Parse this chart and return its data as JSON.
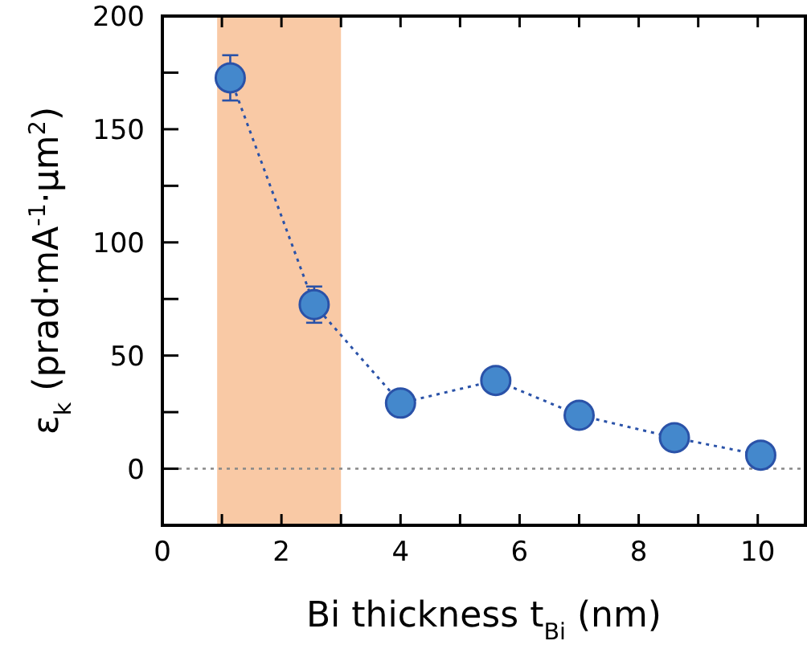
{
  "chart_data": {
    "type": "line",
    "xlabel": "Bi thickness t$_{Bi}$ (nm)",
    "ylabel": "ε$_{k}$ (prad·mA$^{-1}$·μm$^{2}$)",
    "x": [
      1.14,
      2.55,
      4.0,
      5.6,
      7.0,
      8.6,
      10.05
    ],
    "series": [
      {
        "color": "#4488cc",
        "values": [
          172.7,
          72.5,
          29,
          39,
          23.6,
          13.7,
          6
        ],
        "errors": [
          10,
          8,
          null,
          null,
          null,
          null,
          null
        ]
      }
    ],
    "xlim": [
      0,
      10.8
    ],
    "ylim": [
      -25,
      200
    ],
    "xticks": [
      0,
      {
        "value": 1,
        "label": null
      },
      2,
      {
        "value": 3,
        "label": null
      },
      4,
      {
        "value": 5,
        "label": null
      },
      6,
      {
        "value": 7,
        "label": null
      },
      8,
      {
        "value": 9,
        "label": null
      },
      10
    ],
    "yticks": [
      {
        "value": -25,
        "label": null
      },
      0,
      {
        "value": 25,
        "label": null
      },
      50,
      {
        "value": 75,
        "label": null
      },
      100,
      {
        "value": 125,
        "label": null
      },
      150,
      {
        "value": 175,
        "label": null
      },
      200
    ],
    "bands": [
      {
        "axis": "x",
        "from": 0.92,
        "to": 3.0,
        "color": "#f9c9a5"
      }
    ],
    "ref_lines": [
      {
        "axis": "y",
        "value": 0,
        "color": "#888888",
        "line_style": "dotted"
      }
    ],
    "grid": false,
    "marker": "circle",
    "line_style": "dotted"
  }
}
